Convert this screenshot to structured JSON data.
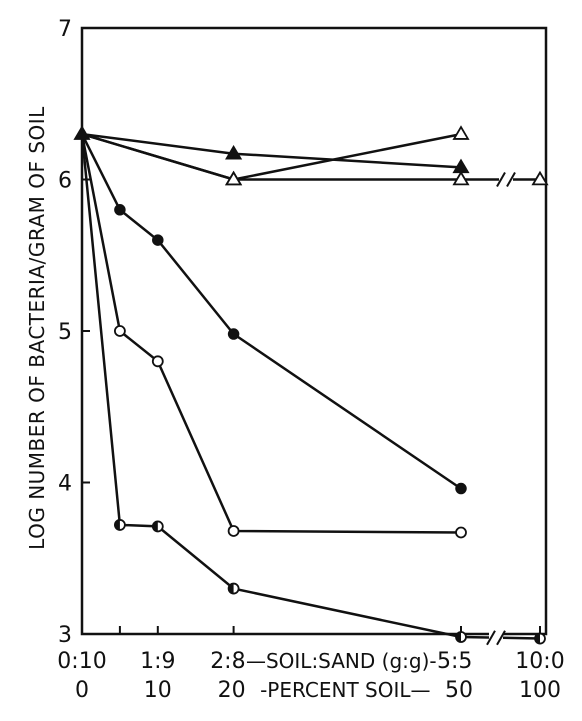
{
  "chart_data": {
    "type": "line",
    "title": "",
    "ylabel": "LOG NUMBER OF BACTERIA/GRAM OF SOIL",
    "xlabel_ratio": "SOIL:SAND (g:g)",
    "xlabel_percent": "PERCENT SOIL",
    "ylim": [
      3,
      7
    ],
    "xlim": [
      0,
      100
    ],
    "x_axis_break_between": [
      50,
      100
    ],
    "y_ticks": [
      "3",
      "4",
      "5",
      "6",
      "7"
    ],
    "x_ticks_ratio": [
      {
        "x": 0,
        "label": "0:10"
      },
      {
        "x": 10,
        "label": "1:9"
      },
      {
        "x": 20,
        "label": "2:8"
      },
      {
        "x": 50,
        "label": "5:5"
      },
      {
        "x": 100,
        "label": "10:0"
      }
    ],
    "x_ticks_percent": [
      {
        "x": 0,
        "label": "0"
      },
      {
        "x": 10,
        "label": "10"
      },
      {
        "x": 20,
        "label": "20"
      },
      {
        "x": 50,
        "label": "50"
      },
      {
        "x": 100,
        "label": "100"
      }
    ],
    "series": [
      {
        "marker": "open-triangle",
        "x": [
          0,
          20,
          50
        ],
        "y": [
          6.3,
          6.0,
          6.3
        ]
      },
      {
        "marker": "filled-triangle",
        "x": [
          0,
          20,
          50
        ],
        "y": [
          6.3,
          6.17,
          6.08
        ]
      },
      {
        "marker": "open-triangle",
        "x": [
          0,
          20,
          50,
          100
        ],
        "y": [
          6.3,
          6.0,
          6.0,
          6.0
        ]
      },
      {
        "marker": "filled-circle",
        "x": [
          0,
          5,
          10,
          20,
          50
        ],
        "y": [
          6.3,
          5.8,
          5.6,
          4.98,
          3.96
        ]
      },
      {
        "marker": "open-circle",
        "x": [
          0,
          5,
          10,
          20,
          50
        ],
        "y": [
          6.3,
          5.0,
          4.8,
          3.68,
          3.67
        ]
      },
      {
        "marker": "half-circle",
        "x": [
          0,
          5,
          10,
          20,
          50,
          100
        ],
        "y": [
          6.3,
          3.72,
          3.71,
          3.3,
          2.98,
          2.97
        ]
      }
    ]
  }
}
